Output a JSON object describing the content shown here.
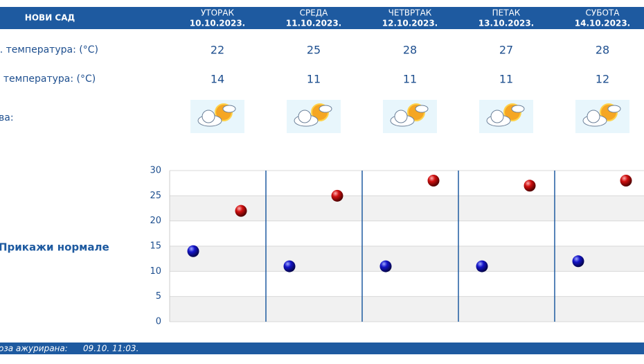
{
  "header": {
    "city": "НОВИ САД",
    "days": [
      {
        "name": "УТОРАК",
        "date": "10.10.2023."
      },
      {
        "name": "СРЕДА",
        "date": "11.10.2023."
      },
      {
        "name": "ЧЕТВРТАК",
        "date": "12.10.2023."
      },
      {
        "name": "ПЕТАК",
        "date": "13.10.2023."
      },
      {
        "name": "СУБОТА",
        "date": "14.10.2023."
      }
    ]
  },
  "rows": {
    "max_label": "с. температура: (°C)",
    "min_label": ". температура: (°C)",
    "icon_label": "ва:"
  },
  "normals_link": "Прикажи нормале",
  "footer": {
    "label": "оза ажурирана:",
    "time": "09.10. 11:03."
  },
  "chart_data": {
    "type": "scatter",
    "ylim": [
      0,
      30
    ],
    "yticks": [
      0,
      5,
      10,
      15,
      20,
      25,
      30
    ],
    "grid": true,
    "series": [
      {
        "color": "#1414c8",
        "values": [
          14,
          11,
          11,
          11,
          12
        ]
      },
      {
        "color": "#d01010",
        "values": [
          22,
          25,
          28,
          27,
          28
        ]
      }
    ]
  }
}
